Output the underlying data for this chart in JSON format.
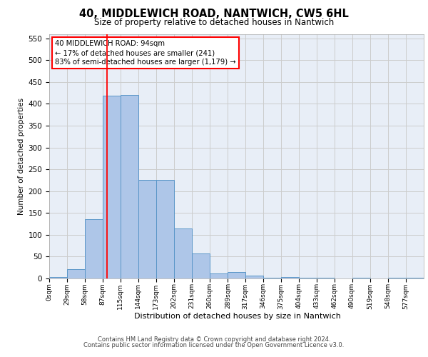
{
  "title1": "40, MIDDLEWICH ROAD, NANTWICH, CW5 6HL",
  "title2": "Size of property relative to detached houses in Nantwich",
  "xlabel": "Distribution of detached houses by size in Nantwich",
  "ylabel": "Number of detached properties",
  "footer1": "Contains HM Land Registry data © Crown copyright and database right 2024.",
  "footer2": "Contains public sector information licensed under the Open Government Licence v3.0.",
  "annotation_line1": "40 MIDDLEWICH ROAD: 94sqm",
  "annotation_line2": "← 17% of detached houses are smaller (241)",
  "annotation_line3": "83% of semi-detached houses are larger (1,179) →",
  "bar_color": "#aec6e8",
  "bar_edge_color": "#5a96c8",
  "grid_color": "#cccccc",
  "background_color": "#e8eef7",
  "red_line_x": 94,
  "bin_edges": [
    0,
    29,
    58,
    87,
    115,
    144,
    173,
    202,
    231,
    260,
    289,
    317,
    346,
    375,
    404,
    433,
    462,
    490,
    519,
    548,
    577,
    606
  ],
  "bar_heights": [
    3,
    22,
    135,
    418,
    420,
    225,
    225,
    115,
    58,
    12,
    14,
    7,
    2,
    3,
    1,
    2,
    0,
    1,
    0,
    1,
    1
  ],
  "ylim": [
    0,
    560
  ],
  "yticks": [
    0,
    50,
    100,
    150,
    200,
    250,
    300,
    350,
    400,
    450,
    500,
    550
  ],
  "fig_width": 6.0,
  "fig_height": 5.0,
  "dpi": 100
}
